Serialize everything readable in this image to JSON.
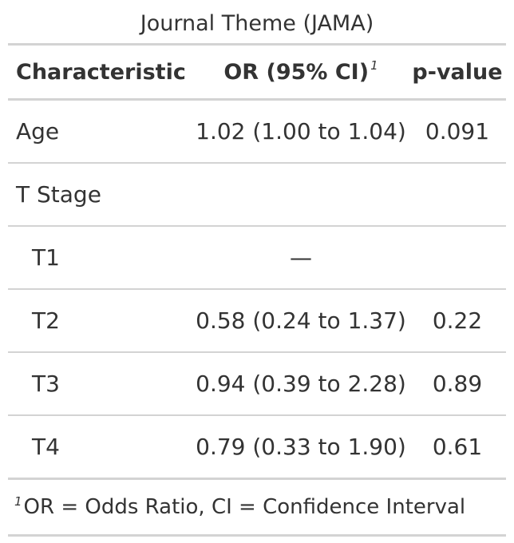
{
  "caption": "Journal Theme (JAMA)",
  "header": {
    "characteristic": "Characteristic",
    "or": "OR (95% CI)",
    "or_footnote_mark": "1",
    "pvalue": "p-value"
  },
  "rows": [
    {
      "label": "Age",
      "or": "1.02 (1.00 to 1.04)",
      "p": "0.091"
    },
    {
      "label": "T Stage",
      "or": "",
      "p": ""
    },
    {
      "label": "T1",
      "or": "—",
      "p": ""
    },
    {
      "label": "T2",
      "or": "0.58 (0.24 to 1.37)",
      "p": "0.22"
    },
    {
      "label": "T3",
      "or": "0.94 (0.39 to 2.28)",
      "p": "0.89"
    },
    {
      "label": "T4",
      "or": "0.79 (0.33 to 1.90)",
      "p": "0.61"
    }
  ],
  "footnote": {
    "mark": "1",
    "text": "OR = Odds Ratio, CI = Confidence Interval"
  }
}
